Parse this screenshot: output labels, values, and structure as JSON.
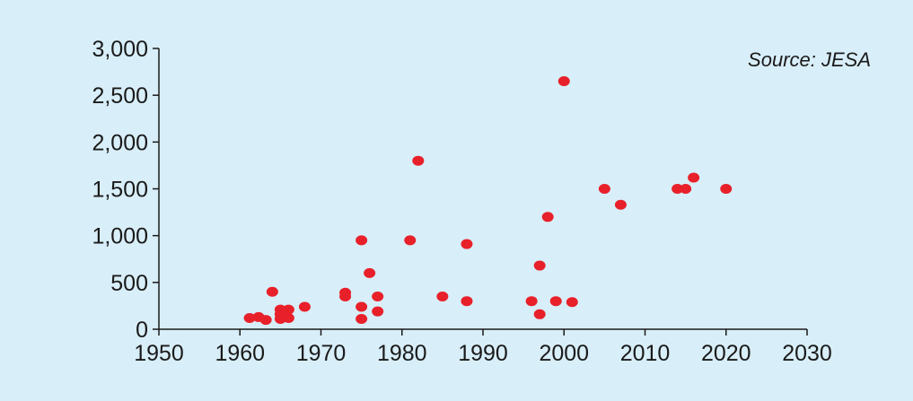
{
  "chart_data": {
    "type": "scatter",
    "annotation": "Source: JESA",
    "xlim": [
      1950,
      2030
    ],
    "ylim": [
      0,
      3000
    ],
    "x_ticks": [
      1950,
      1960,
      1970,
      1980,
      1990,
      2000,
      2010,
      2020,
      2030
    ],
    "x_tick_labels": [
      "1950",
      "1960",
      "1970",
      "1980",
      "1990",
      "2000",
      "2010",
      "2020",
      "2030"
    ],
    "y_ticks": [
      0,
      500,
      1000,
      1500,
      2000,
      2500,
      3000
    ],
    "y_tick_labels": [
      "0",
      "500",
      "1,000",
      "1,500",
      "2,000",
      "2,500",
      "3,000"
    ],
    "grid": false,
    "legend": "none",
    "marker_color": "#e8202a",
    "background_color": "#d8eef8",
    "series": [
      {
        "points": [
          {
            "x": 1961.2,
            "y": 120
          },
          {
            "x": 1962.3,
            "y": 130
          },
          {
            "x": 1963.2,
            "y": 100
          },
          {
            "x": 1964.0,
            "y": 400
          },
          {
            "x": 1965.0,
            "y": 210
          },
          {
            "x": 1965.0,
            "y": 160
          },
          {
            "x": 1965.0,
            "y": 110
          },
          {
            "x": 1966.0,
            "y": 210
          },
          {
            "x": 1966.0,
            "y": 120
          },
          {
            "x": 1968.0,
            "y": 240
          },
          {
            "x": 1973.0,
            "y": 390
          },
          {
            "x": 1973.0,
            "y": 350
          },
          {
            "x": 1975.0,
            "y": 950
          },
          {
            "x": 1975.0,
            "y": 240
          },
          {
            "x": 1975.0,
            "y": 110
          },
          {
            "x": 1976.0,
            "y": 600
          },
          {
            "x": 1977.0,
            "y": 350
          },
          {
            "x": 1977.0,
            "y": 190
          },
          {
            "x": 1981.0,
            "y": 950
          },
          {
            "x": 1982.0,
            "y": 1800
          },
          {
            "x": 1985.0,
            "y": 350
          },
          {
            "x": 1988.0,
            "y": 910
          },
          {
            "x": 1988.0,
            "y": 300
          },
          {
            "x": 1996.0,
            "y": 300
          },
          {
            "x": 1997.0,
            "y": 680
          },
          {
            "x": 1997.0,
            "y": 160
          },
          {
            "x": 1998.0,
            "y": 1200
          },
          {
            "x": 1999.0,
            "y": 300
          },
          {
            "x": 2000.0,
            "y": 2650
          },
          {
            "x": 2001.0,
            "y": 290
          },
          {
            "x": 2005.0,
            "y": 1500
          },
          {
            "x": 2007.0,
            "y": 1330
          },
          {
            "x": 2014.0,
            "y": 1500
          },
          {
            "x": 2015.0,
            "y": 1500
          },
          {
            "x": 2016.0,
            "y": 1620
          },
          {
            "x": 2020.0,
            "y": 1500
          }
        ]
      }
    ]
  }
}
